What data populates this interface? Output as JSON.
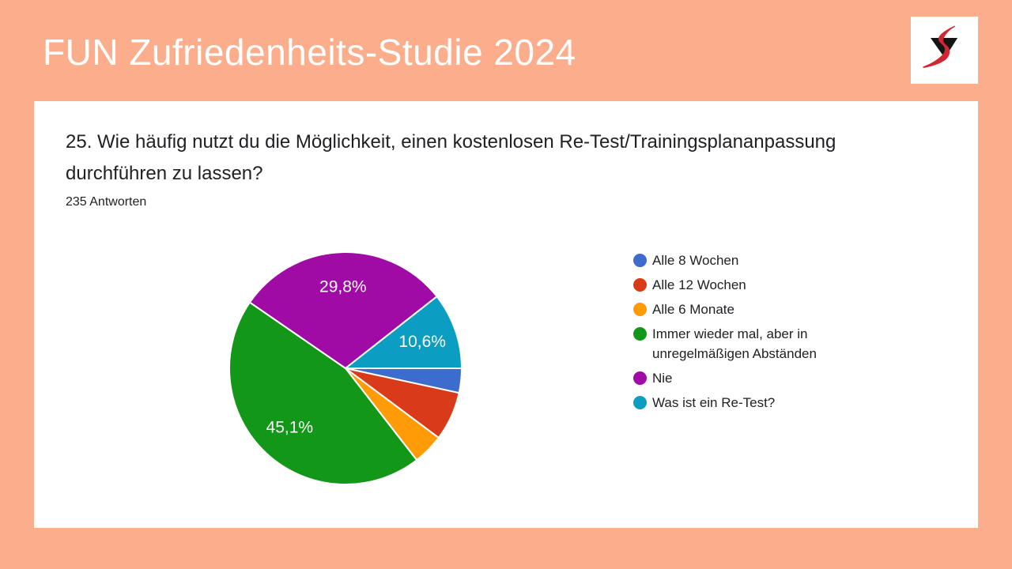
{
  "header": {
    "title": "FUN Zufriedenheits-Studie 2024",
    "logo_icon": "triangle-swoosh-logo",
    "logo_colors": {
      "triangle": "#141414",
      "swoosh": "#D22730"
    }
  },
  "theme": {
    "background": "#FCAE8C",
    "card_background": "#FFFFFF",
    "title_color": "#FFFFFF",
    "text_color": "#202124",
    "slice_border": "#FFFFFF"
  },
  "chart_data": {
    "type": "pie",
    "title": "25. Wie häufig nutzt du die Möglichkeit, einen kostenlosen Re-Test/Trainingsplananpassung durchführen zu lassen?",
    "subtitle": "235 Antworten",
    "total_responses": 235,
    "legend_position": "right",
    "start_angle_deg": 0,
    "direction": "clockwise",
    "label_color": "#FFFFFF",
    "slices": [
      {
        "label": "Alle 8 Wochen",
        "percent": 3.4,
        "percent_label": "",
        "color": "#3B6CCE"
      },
      {
        "label": "Alle 12 Wochen",
        "percent": 6.8,
        "percent_label": "",
        "color": "#D93B1A"
      },
      {
        "label": "Alle 6 Monate",
        "percent": 4.3,
        "percent_label": "",
        "color": "#FF9B06"
      },
      {
        "label": "Immer wieder mal, aber in unregelmäßigen Abständen",
        "percent": 45.1,
        "percent_label": "45,1%",
        "color": "#139718"
      },
      {
        "label": "Nie",
        "percent": 29.8,
        "percent_label": "29,8%",
        "color": "#A00BA5"
      },
      {
        "label": "Was ist ein Re-Test?",
        "percent": 10.6,
        "percent_label": "10,6%",
        "color": "#0C9DC2"
      }
    ]
  }
}
